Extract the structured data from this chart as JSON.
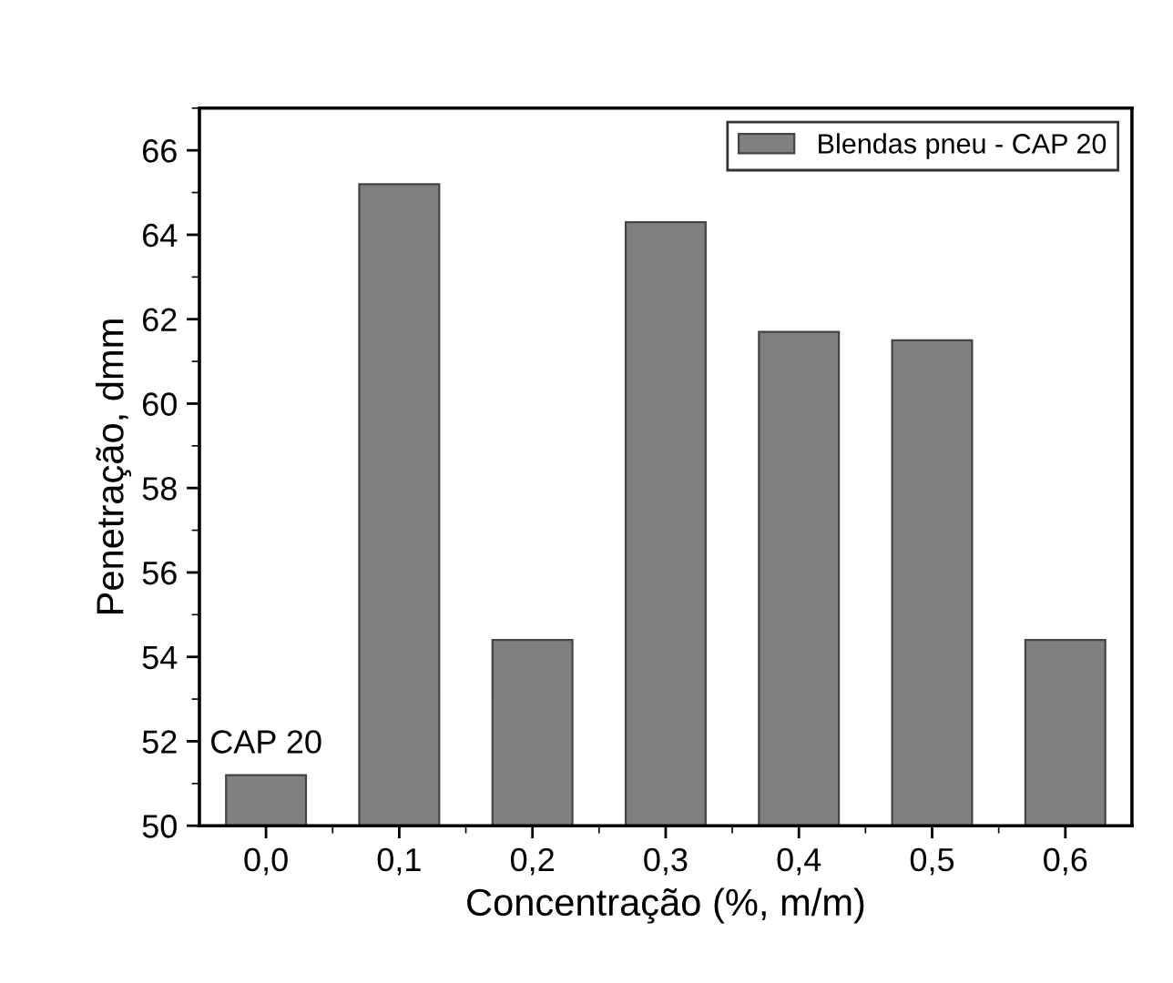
{
  "chart_data": {
    "type": "bar",
    "xlabel": "Concentração (%, m/m)",
    "ylabel": "Penetração, dmm",
    "categories": [
      "0,0",
      "0,1",
      "0,2",
      "0,3",
      "0,4",
      "0,5",
      "0,6"
    ],
    "series": [
      {
        "name": "Blendas pneu - CAP 20",
        "color": "#808080",
        "values": [
          51.2,
          65.2,
          54.4,
          64.3,
          61.7,
          61.5,
          54.4
        ]
      }
    ],
    "ylim": [
      50,
      67
    ],
    "yticks": [
      50,
      52,
      54,
      56,
      58,
      60,
      62,
      64,
      66
    ],
    "annotations": [
      {
        "text": "CAP 20",
        "x": "0,0",
        "y": 51.2
      }
    ],
    "legend": "top right",
    "grid": false
  }
}
